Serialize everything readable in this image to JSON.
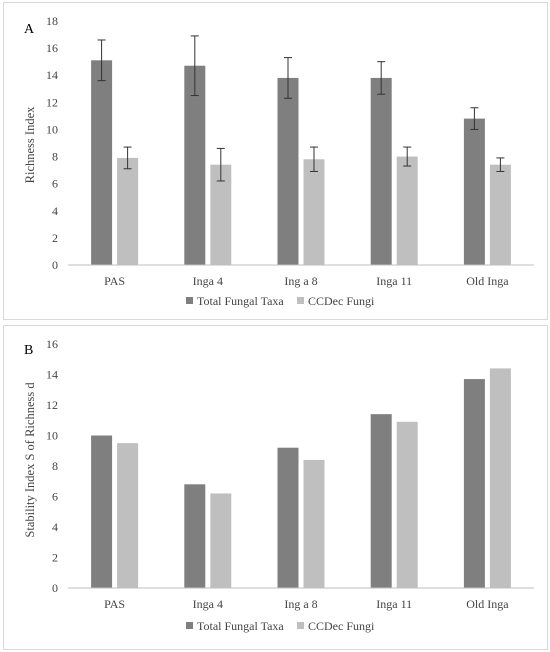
{
  "chart_data": [
    {
      "type": "bar",
      "panel_label": "A",
      "categories": [
        "PAS",
        "Inga 4",
        "Ing a 8",
        "Inga 11",
        "Old Inga"
      ],
      "series": [
        {
          "name": "Total Fungal Taxa",
          "color": "#7f7f7f",
          "values": [
            15.1,
            14.7,
            13.8,
            13.8,
            10.8
          ],
          "errors": [
            1.5,
            2.2,
            1.5,
            1.2,
            0.8
          ]
        },
        {
          "name": "CCDec Fungi",
          "color": "#bfbfbf",
          "values": [
            7.9,
            7.4,
            7.8,
            8.0,
            7.4
          ],
          "errors": [
            0.8,
            1.2,
            0.9,
            0.7,
            0.5
          ]
        }
      ],
      "ylabel": "Richness Index",
      "ylim": [
        0,
        18
      ],
      "yticks": [
        "0",
        "2",
        "4",
        "6",
        "8",
        "10",
        "12",
        "14",
        "16",
        "18"
      ],
      "legend_position": "bottom"
    },
    {
      "type": "bar",
      "panel_label": "B",
      "categories": [
        "PAS",
        "Inga 4",
        "Ing a 8",
        "Inga 11",
        "Old Inga"
      ],
      "series": [
        {
          "name": "Total Fungal Taxa",
          "color": "#7f7f7f",
          "values": [
            10.0,
            6.8,
            9.2,
            11.4,
            13.7
          ]
        },
        {
          "name": "CCDec Fungi",
          "color": "#bfbfbf",
          "values": [
            9.5,
            6.2,
            8.4,
            10.9,
            14.4
          ]
        }
      ],
      "ylabel": "Stability Index S of Richness d",
      "ylim": [
        0,
        16
      ],
      "yticks": [
        "0",
        "2",
        "4",
        "6",
        "8",
        "10",
        "12",
        "14",
        "16"
      ],
      "legend_position": "bottom"
    }
  ]
}
